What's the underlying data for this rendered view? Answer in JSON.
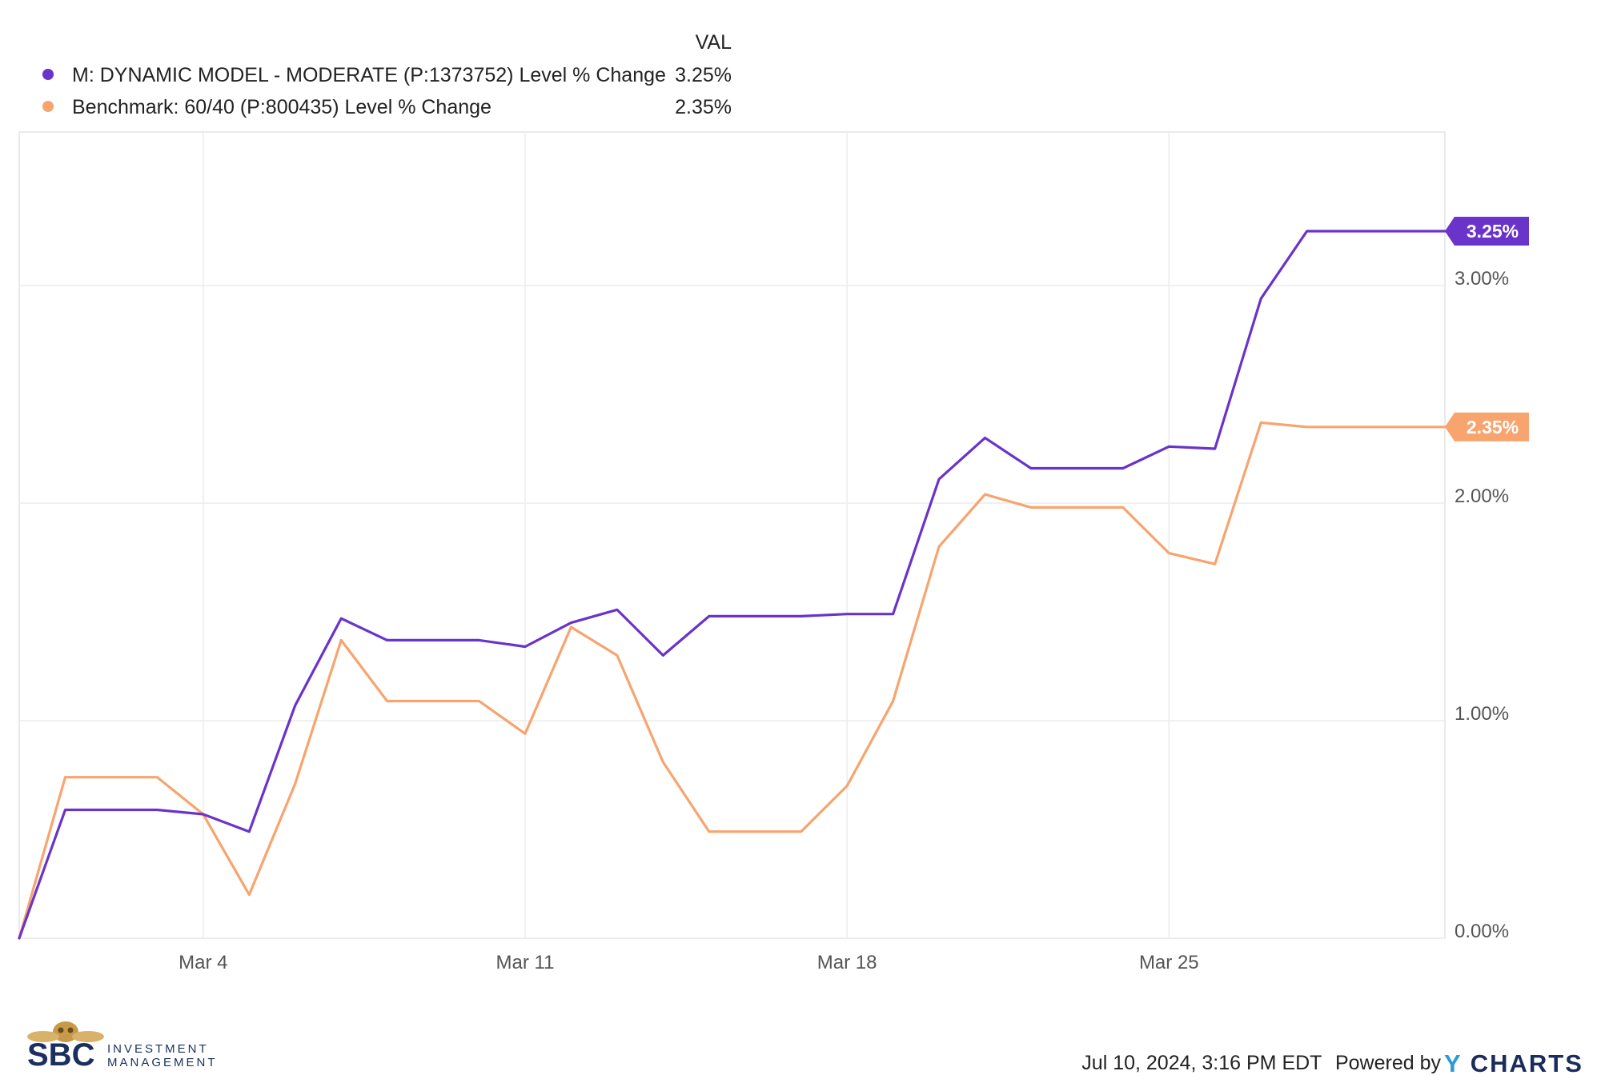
{
  "legend": {
    "header": "VAL",
    "items": [
      {
        "label": "M: DYNAMIC MODEL - MODERATE (P:1373752) Level % Change",
        "value": "3.25%",
        "color": "#6a33c9"
      },
      {
        "label": "Benchmark: 60/40 (P:800435) Level % Change",
        "value": "2.35%",
        "color": "#f7a46e"
      }
    ]
  },
  "footer": {
    "timestamp": "Jul 10, 2024, 3:16 PM EDT",
    "powered_by": "Powered by",
    "brand_mark": "Y",
    "brand_name": "CHARTS"
  },
  "logo": {
    "initials": "SBC",
    "line1": "INVESTMENT",
    "line2": "MANAGEMENT"
  },
  "chart_data": {
    "type": "line",
    "x": [
      "Feb 29",
      "Mar 1",
      "Mar 3",
      "Mar 4",
      "Mar 5",
      "Mar 6",
      "Mar 7",
      "Mar 8",
      "Mar 9",
      "Mar 10",
      "Mar 11",
      "Mar 12",
      "Mar 13",
      "Mar 14",
      "Mar 15",
      "Mar 16",
      "Mar 17",
      "Mar 18",
      "Mar 19",
      "Mar 20",
      "Mar 21",
      "Mar 22",
      "Mar 23",
      "Mar 24",
      "Mar 25",
      "Mar 26",
      "Mar 27",
      "Mar 28",
      "Mar 29",
      "Mar 30",
      "Mar 31"
    ],
    "x_day": [
      0,
      1,
      3,
      4,
      5,
      6,
      7,
      8,
      9,
      10,
      11,
      12,
      13,
      14,
      15,
      16,
      17,
      18,
      19,
      20,
      21,
      22,
      23,
      24,
      25,
      26,
      27,
      28,
      29,
      30,
      31
    ],
    "x_ticks": [
      {
        "day": 4,
        "label": "Mar 4"
      },
      {
        "day": 11,
        "label": "Mar 11"
      },
      {
        "day": 18,
        "label": "Mar 18"
      },
      {
        "day": 25,
        "label": "Mar 25"
      }
    ],
    "x_range": [
      0,
      31
    ],
    "series": [
      {
        "name": "M: DYNAMIC MODEL - MODERATE (P:1373752) Level % Change",
        "color": "#6a33c9",
        "values": [
          0.0,
          0.59,
          0.59,
          0.57,
          0.49,
          1.07,
          1.47,
          1.37,
          1.37,
          1.37,
          1.34,
          1.45,
          1.51,
          1.3,
          1.48,
          1.48,
          1.48,
          1.49,
          1.49,
          2.11,
          2.3,
          2.16,
          2.16,
          2.16,
          2.26,
          2.25,
          2.94,
          3.25,
          3.25,
          3.25,
          3.25
        ]
      },
      {
        "name": "Benchmark: 60/40 (P:800435) Level % Change",
        "color": "#f7a46e",
        "values": [
          0.0,
          0.74,
          0.74,
          0.57,
          0.2,
          0.71,
          1.37,
          1.09,
          1.09,
          1.09,
          0.94,
          1.43,
          1.3,
          0.81,
          0.49,
          0.49,
          0.49,
          0.7,
          1.09,
          1.8,
          2.04,
          1.98,
          1.98,
          1.98,
          1.77,
          1.72,
          2.37,
          2.35,
          2.35,
          2.35,
          2.35
        ]
      }
    ],
    "y_ticks": [
      {
        "value": 0,
        "label": "0.00%"
      },
      {
        "value": 1,
        "label": "1.00%"
      },
      {
        "value": 2,
        "label": "2.00%"
      },
      {
        "value": 3,
        "label": "3.00%"
      }
    ],
    "ylim": [
      0,
      4.0
    ],
    "end_labels": [
      "3.25%",
      "2.35%"
    ],
    "grid": true,
    "legend_position": "top-left"
  }
}
